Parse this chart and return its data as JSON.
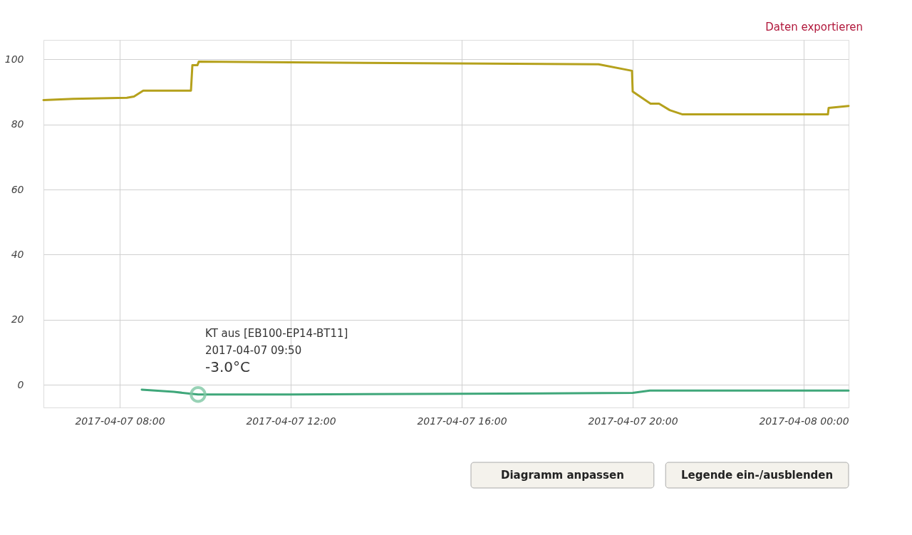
{
  "chart_data": {
    "type": "line",
    "xlim": [
      "2017-04-07T06:13",
      "2017-04-08T01:03"
    ],
    "xticks": [
      {
        "value": "2017-04-07T08:00",
        "label": "2017-04-07 08:00"
      },
      {
        "value": "2017-04-07T12:00",
        "label": "2017-04-07 12:00"
      },
      {
        "value": "2017-04-07T16:00",
        "label": "2017-04-07 16:00"
      },
      {
        "value": "2017-04-07T20:00",
        "label": "2017-04-07 20:00"
      },
      {
        "value": "2017-04-08T00:00",
        "label": "2017-04-08 00:00"
      }
    ],
    "ylim": [
      -7,
      106
    ],
    "yticks": [
      0,
      20,
      40,
      60,
      80,
      100
    ],
    "grid": true,
    "marker": "none",
    "line_style": "solid",
    "series": [
      {
        "color": "#b5a11c",
        "x": [
          "2017-04-07T06:13",
          "2017-04-07T06:55",
          "2017-04-07T08:10",
          "2017-04-07T08:20",
          "2017-04-07T08:33",
          "2017-04-07T09:40",
          "2017-04-07T09:42",
          "2017-04-07T09:49",
          "2017-04-07T09:51",
          "2017-04-07T12:00",
          "2017-04-07T19:12",
          "2017-04-07T19:59",
          "2017-04-07T20:00",
          "2017-04-07T20:25",
          "2017-04-07T20:37",
          "2017-04-07T20:52",
          "2017-04-07T21:10",
          "2017-04-08T00:34",
          "2017-04-08T00:35",
          "2017-04-08T01:03"
        ],
        "values": [
          87.5,
          87.9,
          88.2,
          88.6,
          90.4,
          90.4,
          98.2,
          98.2,
          99.3,
          99.1,
          98.5,
          96.5,
          90.1,
          86.4,
          86.4,
          84.4,
          83.1,
          83.1,
          85.1,
          85.7
        ]
      },
      {
        "color": "#3fa77a",
        "x": [
          "2017-04-07T08:31",
          "2017-04-07T09:16",
          "2017-04-07T09:50",
          "2017-04-07T12:00",
          "2017-04-07T16:00",
          "2017-04-07T20:00",
          "2017-04-07T20:24",
          "2017-04-08T01:03"
        ],
        "values": [
          -1.5,
          -2.2,
          -3.0,
          -3.0,
          -2.8,
          -2.5,
          -1.8,
          -1.8
        ]
      }
    ],
    "annotations": [
      "Daten exportieren",
      "Diagramm anpassen",
      "Legende ein-/ausblenden",
      {
        "text": "KT aus [EB100-EP14-BT11]\n2017-04-07 09:50\n-3.0°C",
        "x": "2017-04-07T09:50",
        "y": -3.0
      }
    ]
  }
}
